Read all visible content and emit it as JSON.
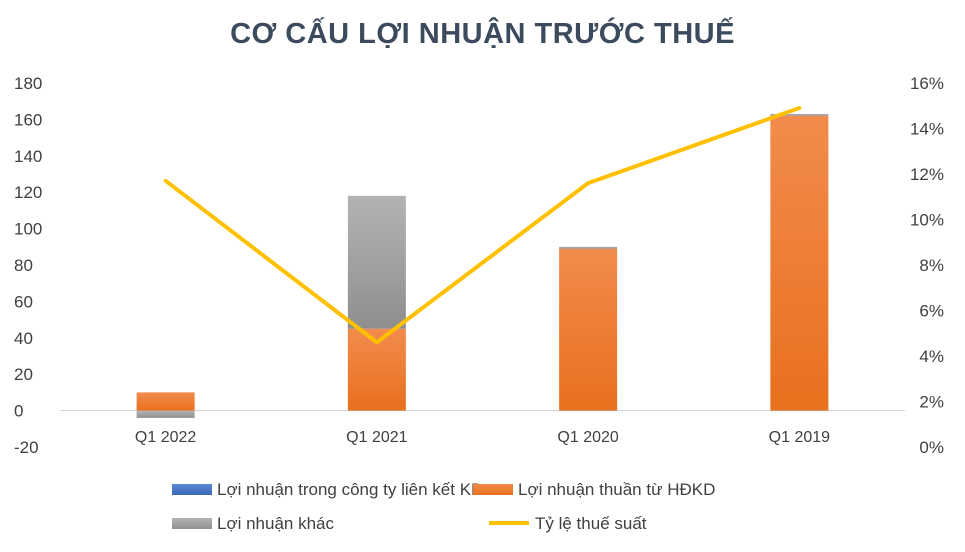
{
  "chart_data": {
    "type": "bar",
    "title": "CƠ CẤU LỢI NHUẬN TRƯỚC THUẾ",
    "categories": [
      "Q1 2022",
      "Q1 2021",
      "Q1 2020",
      "Q1 2019"
    ],
    "series": [
      {
        "name": "Lợi nhuận trong công ty liên kết KD",
        "type": "bar",
        "axis": "left",
        "color": "#4472c4",
        "values": [
          0,
          0,
          0,
          0
        ]
      },
      {
        "name": "Lợi nhuận thuần từ HĐKD",
        "type": "bar",
        "axis": "left",
        "color": "#f07a26",
        "values": [
          10,
          45,
          89,
          162
        ]
      },
      {
        "name": "Lợi nhuận khác",
        "type": "bar",
        "axis": "left",
        "color": "#a5a5a5",
        "values": [
          -4,
          73,
          1,
          1
        ]
      },
      {
        "name": "Tỷ lệ thuế suất",
        "type": "line",
        "axis": "right",
        "color": "#ffc000",
        "values": [
          0.117,
          0.046,
          0.116,
          0.149
        ]
      }
    ],
    "y_left": {
      "min": -20,
      "max": 180,
      "step": 20,
      "tick_labels": [
        "-20",
        "0",
        "20",
        "40",
        "60",
        "80",
        "100",
        "120",
        "140",
        "160",
        "180"
      ]
    },
    "y_right": {
      "min": 0,
      "max": 0.16,
      "step": 0.02,
      "tick_labels": [
        "0%",
        "2%",
        "4%",
        "6%",
        "8%",
        "10%",
        "12%",
        "14%",
        "16%"
      ]
    },
    "grid": false,
    "legend_position": "bottom"
  }
}
